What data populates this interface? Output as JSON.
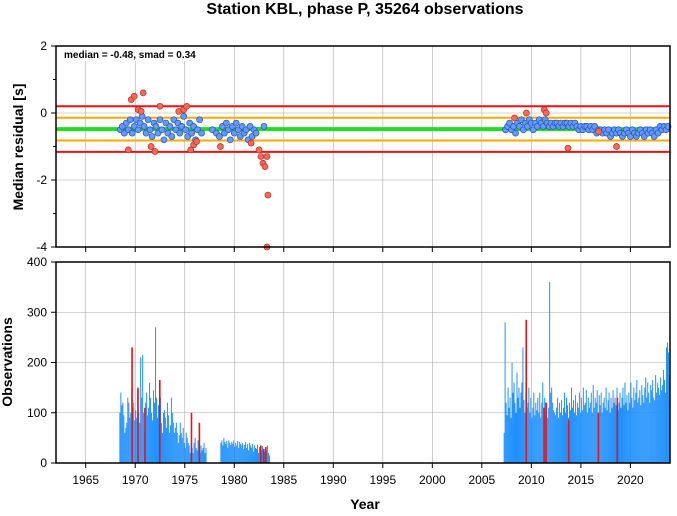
{
  "title": "Station KBL, phase P, 35264 observations",
  "colors": {
    "median_line": "#22dd22",
    "smad_lines": "#ffaa00",
    "limit_lines": "#ee1111",
    "point_in": "#6699ff",
    "point_out": "#ff6655",
    "bar_in": "#1e90ff",
    "bar_out": "#ee1111",
    "grid": "#aaaaaa"
  },
  "chart_data": [
    {
      "type": "scatter",
      "title": "",
      "annotation": "median = -0.48, smad = 0.34",
      "xlabel": "",
      "ylabel": "Median residual [s]",
      "xlim": [
        1962,
        2024
      ],
      "ylim": [
        -4,
        2
      ],
      "yticks": [
        -4,
        -2,
        0,
        2
      ],
      "grid": true,
      "reference_lines": [
        {
          "name": "median",
          "y": -0.48,
          "color": "green"
        },
        {
          "name": "median + smad",
          "y": -0.14,
          "color": "orange"
        },
        {
          "name": "median - smad",
          "y": -0.82,
          "color": "orange"
        },
        {
          "name": "upper limit",
          "y": 0.2,
          "color": "red"
        },
        {
          "name": "lower limit",
          "y": -1.16,
          "color": "red"
        }
      ],
      "points_in": [
        [
          1968.5,
          -0.5
        ],
        [
          1968.7,
          -0.4
        ],
        [
          1968.9,
          -0.6
        ],
        [
          1969.1,
          -0.3
        ],
        [
          1969.3,
          -0.5
        ],
        [
          1969.5,
          -0.2
        ],
        [
          1969.7,
          -0.6
        ],
        [
          1969.9,
          -0.4
        ],
        [
          1970.1,
          -0.2
        ],
        [
          1970.3,
          -0.5
        ],
        [
          1970.5,
          -0.3
        ],
        [
          1970.7,
          -0.1
        ],
        [
          1970.9,
          -0.4
        ],
        [
          1971.1,
          -0.6
        ],
        [
          1971.3,
          -0.2
        ],
        [
          1971.5,
          -0.5
        ],
        [
          1971.7,
          -0.7
        ],
        [
          1971.9,
          -0.3
        ],
        [
          1972.1,
          -0.4
        ],
        [
          1972.3,
          -0.6
        ],
        [
          1972.5,
          -0.2
        ],
        [
          1972.7,
          -0.5
        ],
        [
          1972.9,
          -0.8
        ],
        [
          1973.1,
          -0.3
        ],
        [
          1973.3,
          -0.6
        ],
        [
          1973.5,
          -0.4
        ],
        [
          1973.7,
          -0.7
        ],
        [
          1973.9,
          -0.2
        ],
        [
          1974.1,
          -0.5
        ],
        [
          1974.3,
          -0.3
        ],
        [
          1974.5,
          -0.6
        ],
        [
          1974.7,
          -0.4
        ],
        [
          1974.9,
          -0.1
        ],
        [
          1975.1,
          -0.5
        ],
        [
          1975.3,
          -0.7
        ],
        [
          1975.5,
          -0.3
        ],
        [
          1975.7,
          -0.6
        ],
        [
          1975.9,
          -0.4
        ],
        [
          1976.1,
          -0.8
        ],
        [
          1976.3,
          -0.5
        ],
        [
          1976.5,
          -0.2
        ],
        [
          1976.7,
          -0.6
        ],
        [
          1977.8,
          -0.5
        ],
        [
          1978.2,
          -0.6
        ],
        [
          1978.5,
          -0.7
        ],
        [
          1978.8,
          -0.4
        ],
        [
          1979.0,
          -0.6
        ],
        [
          1979.2,
          -0.3
        ],
        [
          1979.4,
          -0.5
        ],
        [
          1979.6,
          -0.8
        ],
        [
          1979.8,
          -0.4
        ],
        [
          1980.0,
          -0.6
        ],
        [
          1980.2,
          -0.3
        ],
        [
          1980.4,
          -0.5
        ],
        [
          1980.6,
          -0.7
        ],
        [
          1980.8,
          -0.4
        ],
        [
          1981.0,
          -0.6
        ],
        [
          1981.2,
          -0.5
        ],
        [
          1981.4,
          -0.8
        ],
        [
          1981.6,
          -0.4
        ],
        [
          1981.8,
          -0.7
        ],
        [
          1982.0,
          -0.5
        ],
        [
          1982.2,
          -0.6
        ],
        [
          1983.0,
          -0.4
        ],
        [
          2007.4,
          -0.5
        ],
        [
          2007.6,
          -0.4
        ],
        [
          2007.8,
          -0.3
        ],
        [
          2008.0,
          -0.5
        ],
        [
          2008.2,
          -0.4
        ],
        [
          2008.4,
          -0.6
        ],
        [
          2008.6,
          -0.3
        ],
        [
          2008.8,
          -0.4
        ],
        [
          2009.0,
          -0.2
        ],
        [
          2009.2,
          -0.5
        ],
        [
          2009.4,
          -0.3
        ],
        [
          2009.6,
          -0.4
        ],
        [
          2009.8,
          -0.2
        ],
        [
          2010.0,
          -0.3
        ],
        [
          2010.2,
          -0.5
        ],
        [
          2010.4,
          -0.3
        ],
        [
          2010.6,
          -0.4
        ],
        [
          2010.8,
          -0.2
        ],
        [
          2011.0,
          -0.3
        ],
        [
          2011.2,
          -0.4
        ],
        [
          2011.4,
          -0.2
        ],
        [
          2011.6,
          -0.3
        ],
        [
          2011.8,
          -0.4
        ],
        [
          2012.0,
          -0.3
        ],
        [
          2012.2,
          -0.4
        ],
        [
          2012.4,
          -0.3
        ],
        [
          2012.6,
          -0.3
        ],
        [
          2012.8,
          -0.4
        ],
        [
          2013.0,
          -0.3
        ],
        [
          2013.2,
          -0.4
        ],
        [
          2013.4,
          -0.3
        ],
        [
          2013.6,
          -0.3
        ],
        [
          2013.8,
          -0.4
        ],
        [
          2014.0,
          -0.3
        ],
        [
          2014.2,
          -0.4
        ],
        [
          2014.4,
          -0.3
        ],
        [
          2014.6,
          -0.4
        ],
        [
          2014.8,
          -0.5
        ],
        [
          2015.0,
          -0.4
        ],
        [
          2015.2,
          -0.5
        ],
        [
          2015.4,
          -0.4
        ],
        [
          2015.6,
          -0.4
        ],
        [
          2015.8,
          -0.5
        ],
        [
          2016.0,
          -0.4
        ],
        [
          2016.2,
          -0.5
        ],
        [
          2016.4,
          -0.4
        ],
        [
          2016.6,
          -0.6
        ],
        [
          2016.8,
          -0.5
        ],
        [
          2017.0,
          -0.5
        ],
        [
          2017.2,
          -0.6
        ],
        [
          2017.4,
          -0.5
        ],
        [
          2017.6,
          -0.6
        ],
        [
          2017.8,
          -0.5
        ],
        [
          2018.0,
          -0.7
        ],
        [
          2018.2,
          -0.6
        ],
        [
          2018.4,
          -0.5
        ],
        [
          2018.6,
          -0.6
        ],
        [
          2018.8,
          -0.5
        ],
        [
          2019.0,
          -0.6
        ],
        [
          2019.2,
          -0.7
        ],
        [
          2019.4,
          -0.6
        ],
        [
          2019.6,
          -0.5
        ],
        [
          2019.8,
          -0.6
        ],
        [
          2020.0,
          -0.7
        ],
        [
          2020.2,
          -0.5
        ],
        [
          2020.4,
          -0.6
        ],
        [
          2020.6,
          -0.7
        ],
        [
          2020.8,
          -0.6
        ],
        [
          2021.0,
          -0.5
        ],
        [
          2021.2,
          -0.6
        ],
        [
          2021.4,
          -0.7
        ],
        [
          2021.6,
          -0.5
        ],
        [
          2021.8,
          -0.6
        ],
        [
          2022.0,
          -0.5
        ],
        [
          2022.2,
          -0.6
        ],
        [
          2022.4,
          -0.7
        ],
        [
          2022.6,
          -0.5
        ],
        [
          2022.8,
          -0.6
        ],
        [
          2023.0,
          -0.4
        ],
        [
          2023.2,
          -0.5
        ],
        [
          2023.4,
          -0.4
        ],
        [
          2023.6,
          -0.5
        ],
        [
          2023.8,
          -0.4
        ]
      ],
      "points_out": [
        [
          1969.3,
          -1.1
        ],
        [
          1969.6,
          0.4
        ],
        [
          1969.9,
          0.5
        ],
        [
          1970.3,
          0.1
        ],
        [
          1970.6,
          0.05
        ],
        [
          1970.8,
          0.6
        ],
        [
          1971.6,
          -1.0
        ],
        [
          1972.0,
          -1.15
        ],
        [
          1972.5,
          0.2
        ],
        [
          1974.4,
          0.05
        ],
        [
          1974.9,
          0.1
        ],
        [
          1975.2,
          0.2
        ],
        [
          1975.6,
          -1.1
        ],
        [
          1975.9,
          -0.95
        ],
        [
          1976.2,
          -0.85
        ],
        [
          1978.6,
          -1.0
        ],
        [
          1981.7,
          -0.9
        ],
        [
          1982.5,
          -1.1
        ],
        [
          1982.7,
          -1.3
        ],
        [
          1982.9,
          -1.5
        ],
        [
          1983.1,
          -1.6
        ],
        [
          1983.3,
          -1.3
        ],
        [
          1983.4,
          -2.45
        ],
        [
          1983.3,
          -4.0
        ],
        [
          2008.3,
          -0.15
        ],
        [
          2009.5,
          0.0
        ],
        [
          2011.3,
          0.1
        ],
        [
          2011.5,
          0.0
        ],
        [
          2013.7,
          -1.05
        ],
        [
          2016.8,
          -0.55
        ],
        [
          2018.6,
          -1.0
        ]
      ]
    },
    {
      "type": "bar",
      "title": "",
      "xlabel": "Year",
      "ylabel": "Observations",
      "xlim": [
        1962,
        2024
      ],
      "ylim": [
        0,
        400
      ],
      "yticks": [
        0,
        100,
        200,
        300,
        400
      ],
      "xticks": [
        1965,
        1970,
        1975,
        1980,
        1985,
        1990,
        1995,
        2000,
        2005,
        2010,
        2015,
        2020
      ],
      "grid": true,
      "segments": [
        {
          "start": 1968.4,
          "end": 1977.2,
          "step": 0.1,
          "values": [
            100,
            140,
            115,
            120,
            95,
            60,
            70,
            80,
            130,
            120,
            90,
            100,
            150,
            110,
            120,
            85,
            105,
            90,
            145,
            100,
            80,
            210,
            130,
            215,
            100,
            60,
            120,
            140,
            95,
            110,
            160,
            130,
            100,
            85,
            145,
            120,
            270,
            130,
            90,
            115,
            100,
            130,
            80,
            60,
            100,
            105,
            90,
            70,
            120,
            95,
            60,
            75,
            130,
            100,
            80,
            60,
            70,
            80,
            60,
            40,
            55,
            80,
            60,
            50,
            70,
            40,
            30,
            60,
            50,
            40,
            35,
            20,
            40,
            30,
            20,
            40,
            50,
            30,
            25,
            45,
            30,
            20,
            35,
            25,
            30,
            40,
            20,
            30
          ]
        },
        {
          "start": 1978.6,
          "end": 1983.6,
          "step": 0.1,
          "values": [
            40,
            45,
            35,
            50,
            42,
            38,
            44,
            30,
            45,
            40,
            36,
            42,
            38,
            45,
            32,
            40,
            35,
            44,
            30,
            42,
            38,
            35,
            40,
            28,
            36,
            42,
            30,
            38,
            25,
            40,
            35,
            30,
            38,
            22,
            35,
            30,
            28,
            36,
            20,
            32,
            30,
            25,
            34,
            28,
            22,
            30,
            25,
            35,
            20,
            15
          ]
        },
        {
          "start": 2007.2,
          "end": 2023.9,
          "step": 0.1,
          "values": [
            60,
            280,
            120,
            95,
            150,
            110,
            130,
            90,
            200,
            140,
            160,
            120,
            100,
            180,
            130,
            150,
            110,
            140,
            160,
            230,
            125,
            100,
            140,
            110,
            120,
            150,
            100,
            130,
            90,
            110,
            140,
            95,
            120,
            105,
            130,
            100,
            140,
            90,
            120,
            160,
            110,
            130,
            100,
            120,
            90,
            110,
            360,
            140,
            150,
            120,
            105,
            100,
            95,
            110,
            130,
            90,
            120,
            100,
            125,
            95,
            110,
            140,
            100,
            130,
            115,
            90,
            120,
            105,
            150,
            110,
            125,
            100,
            135,
            95,
            120,
            110,
            140,
            100,
            130,
            105,
            150,
            115,
            120,
            145,
            100,
            130,
            110,
            120,
            140,
            100,
            155,
            110,
            130,
            120,
            145,
            100,
            135,
            115,
            140,
            100,
            120,
            130,
            110,
            150,
            105,
            125,
            140,
            100,
            130,
            110,
            145,
            120,
            130,
            115,
            150,
            105,
            120,
            140,
            110,
            130,
            150,
            115,
            160,
            120,
            135,
            105,
            140,
            120,
            160,
            130,
            110,
            150,
            125,
            140,
            165,
            120,
            130,
            145,
            115,
            155,
            135,
            120,
            150,
            170,
            130,
            160,
            140,
            120,
            155,
            145,
            165,
            130,
            125,
            175,
            140,
            160,
            150,
            135,
            170,
            145,
            155,
            185,
            165,
            140,
            230,
            240,
            220,
            175,
            200,
            185
          ]
        }
      ],
      "outlier_bars": [
        [
          1969.6,
          230
        ],
        [
          1970.2,
          150
        ],
        [
          1970.9,
          110
        ],
        [
          1972.4,
          165
        ],
        [
          1975.6,
          100
        ],
        [
          1976.4,
          80
        ],
        [
          1982.6,
          35
        ],
        [
          1982.9,
          28
        ],
        [
          1983.1,
          32
        ],
        [
          2009.4,
          285
        ],
        [
          2011.2,
          110
        ],
        [
          2011.4,
          120
        ],
        [
          2013.7,
          85
        ],
        [
          2016.7,
          100
        ],
        [
          2018.6,
          130
        ]
      ]
    }
  ]
}
